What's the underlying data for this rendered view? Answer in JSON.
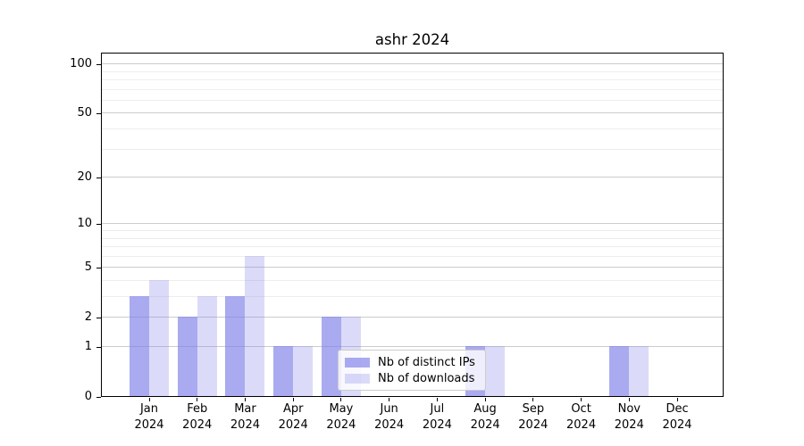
{
  "figure": {
    "background": "#ffffff"
  },
  "chart_data": {
    "type": "bar",
    "title": "ashr 2024",
    "xlabel": "",
    "ylabel": "",
    "x_year_label": "2024",
    "categories": [
      "Jan",
      "Feb",
      "Mar",
      "Apr",
      "May",
      "Jun",
      "Jul",
      "Aug",
      "Sep",
      "Oct",
      "Nov",
      "Dec"
    ],
    "series": [
      {
        "name": "Nb of distinct IPs",
        "color": "rgba(124,124,232,0.65)",
        "values": [
          3,
          2,
          3,
          1,
          2,
          0,
          0,
          1,
          0,
          0,
          1,
          0
        ]
      },
      {
        "name": "Nb of downloads",
        "color": "rgba(124,124,232,0.28)",
        "values": [
          4,
          3,
          6,
          1,
          2,
          0,
          0,
          1,
          0,
          0,
          1,
          0
        ]
      }
    ],
    "y_axis": {
      "scale": "log1p",
      "major_ticks": [
        100,
        50,
        20,
        10,
        5,
        2,
        1,
        0
      ],
      "minor_gridlines": [
        3,
        4,
        6,
        7,
        8,
        9,
        30,
        40,
        60,
        70,
        80,
        90
      ],
      "ylim": [
        0,
        117
      ]
    },
    "grid": true,
    "legend_position": "lower-center-inside"
  },
  "colors": {
    "bar_base": "#7c7ce8",
    "grid_major": "#cccccc",
    "grid_minor": "#ededed",
    "spine": "#000000",
    "text": "#000000",
    "legend_border": "#cccccc",
    "legend_background": "rgba(255,255,255,0.8)"
  }
}
